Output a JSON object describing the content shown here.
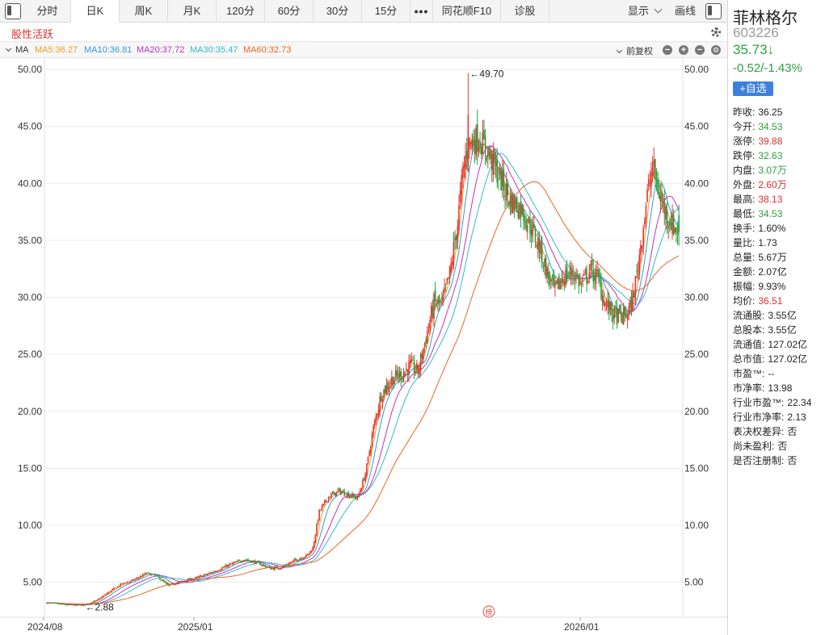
{
  "toolbar": {
    "tabs": [
      "分时",
      "日K",
      "周K",
      "月K",
      "120分",
      "60分",
      "30分",
      "15分"
    ],
    "active_tab": "日K",
    "more_label": "•••",
    "f10_label": "同花顺F10",
    "diagnosis_label": "诊股",
    "display_label": "显示",
    "draw_label": "画线"
  },
  "activity_label": "股性活跃",
  "ma_bar": {
    "selector_label": "MA",
    "items": [
      {
        "text": "MA5:36.27",
        "color": "#f0a020"
      },
      {
        "text": "MA10:36.81",
        "color": "#3399dd"
      },
      {
        "text": "MA20:37.72",
        "color": "#c030c0"
      },
      {
        "text": "MA30:35.47",
        "color": "#33bbcc"
      },
      {
        "text": "MA60:32.73",
        "color": "#ee6622"
      }
    ],
    "adjust_label": "前复权",
    "buttons": [
      "−",
      "+",
      "−",
      "⚙"
    ]
  },
  "stock": {
    "name": "菲林格尔",
    "code": "603226",
    "price": "35.73↓",
    "change": "-0.52/-1.43%",
    "watch_label": "+自选"
  },
  "stats": [
    {
      "label": "昨收:",
      "value": "36.25",
      "tone": "flat"
    },
    {
      "label": "今开:",
      "value": "34.53",
      "tone": "down"
    },
    {
      "label": "涨停:",
      "value": "39.88",
      "tone": "up"
    },
    {
      "label": "跌停:",
      "value": "32.63",
      "tone": "down"
    },
    {
      "label": "内盘:",
      "value": "3.07万",
      "tone": "down"
    },
    {
      "label": "外盘:",
      "value": "2.60万",
      "tone": "up"
    },
    {
      "label": "最高:",
      "value": "38.13",
      "tone": "up"
    },
    {
      "label": "最低:",
      "value": "34.53",
      "tone": "down"
    },
    {
      "label": "换手:",
      "value": "1.60%",
      "tone": "flat"
    },
    {
      "label": "量比:",
      "value": "1.73",
      "tone": "flat"
    },
    {
      "label": "总量:",
      "value": "5.67万",
      "tone": "flat"
    },
    {
      "label": "金额:",
      "value": "2.07亿",
      "tone": "flat"
    },
    {
      "label": "振幅:",
      "value": "9.93%",
      "tone": "flat"
    },
    {
      "label": "均价:",
      "value": "36.51",
      "tone": "up"
    },
    {
      "label": "流通股:",
      "value": "3.55亿",
      "tone": "flat"
    },
    {
      "label": "总股本:",
      "value": "3.55亿",
      "tone": "flat"
    },
    {
      "label": "流通值:",
      "value": "127.02亿",
      "tone": "flat"
    },
    {
      "label": "总市值:",
      "value": "127.02亿",
      "tone": "flat"
    },
    {
      "label": "市盈™:",
      "value": "--",
      "tone": "flat"
    },
    {
      "label": "市净率:",
      "value": "13.98",
      "tone": "flat"
    },
    {
      "label": "行业市盈™:",
      "value": "22.34",
      "tone": "flat"
    },
    {
      "label": "行业市净率:",
      "value": "2.13",
      "tone": "flat"
    },
    {
      "label": "表决权差异:",
      "value": "否",
      "tone": "flat"
    },
    {
      "label": "尚未盈利:",
      "value": "否",
      "tone": "flat"
    },
    {
      "label": "是否注册制:",
      "value": "否",
      "tone": "flat"
    }
  ],
  "chart_data": {
    "type": "candlestick",
    "ylim": [
      2,
      51
    ],
    "y_ticks": [
      "5.00",
      "10.00",
      "15.00",
      "20.00",
      "25.00",
      "30.00",
      "35.00",
      "40.00",
      "45.00",
      "50.00"
    ],
    "x_labels": [
      "2024/08",
      "2025/01",
      "2026/01"
    ],
    "high_marker": "←49.70",
    "low_marker": "←2.88",
    "watermark": "榜",
    "colors": {
      "up": "#e8362f",
      "down": "#22a03c"
    },
    "close_path": [
      [
        0,
        3.2
      ],
      [
        16,
        3.0
      ],
      [
        28,
        3.0
      ],
      [
        38,
        3.4
      ],
      [
        48,
        4.2
      ],
      [
        56,
        4.8
      ],
      [
        66,
        5.2
      ],
      [
        76,
        5.8
      ],
      [
        84,
        5.5
      ],
      [
        92,
        4.7
      ],
      [
        100,
        5.0
      ],
      [
        114,
        5.4
      ],
      [
        126,
        5.9
      ],
      [
        140,
        6.6
      ],
      [
        150,
        7.0
      ],
      [
        160,
        6.7
      ],
      [
        170,
        6.2
      ],
      [
        178,
        6.3
      ],
      [
        188,
        6.9
      ],
      [
        198,
        7.4
      ],
      [
        202,
        8.0
      ],
      [
        207,
        11.2
      ],
      [
        214,
        12.5
      ],
      [
        222,
        13.0
      ],
      [
        228,
        12.7
      ],
      [
        236,
        12.4
      ],
      [
        242,
        14.5
      ],
      [
        248,
        18.5
      ],
      [
        254,
        21.5
      ],
      [
        262,
        22.8
      ],
      [
        270,
        23.3
      ],
      [
        276,
        24.0
      ],
      [
        282,
        23.5
      ],
      [
        288,
        26.5
      ],
      [
        294,
        29.5
      ],
      [
        300,
        29.3
      ],
      [
        306,
        32.0
      ],
      [
        312,
        36.5
      ],
      [
        316,
        41.0
      ],
      [
        320,
        43.5
      ],
      [
        328,
        44.0
      ],
      [
        336,
        42.5
      ],
      [
        344,
        40.5
      ],
      [
        352,
        38.5
      ],
      [
        360,
        37.8
      ],
      [
        368,
        36.0
      ],
      [
        374,
        34.5
      ],
      [
        380,
        32.0
      ],
      [
        386,
        30.5
      ],
      [
        392,
        31.8
      ],
      [
        400,
        32.2
      ],
      [
        406,
        31.0
      ],
      [
        412,
        32.3
      ],
      [
        418,
        31.8
      ],
      [
        424,
        29.5
      ],
      [
        430,
        28.5
      ],
      [
        436,
        28.2
      ],
      [
        440,
        28.5
      ],
      [
        444,
        29.3
      ],
      [
        448,
        32.0
      ],
      [
        452,
        35.5
      ],
      [
        456,
        39.0
      ],
      [
        460,
        41.5
      ],
      [
        464,
        39.5
      ],
      [
        468,
        38.0
      ],
      [
        472,
        37.0
      ],
      [
        476,
        36.2
      ],
      [
        480,
        35.73
      ]
    ]
  }
}
